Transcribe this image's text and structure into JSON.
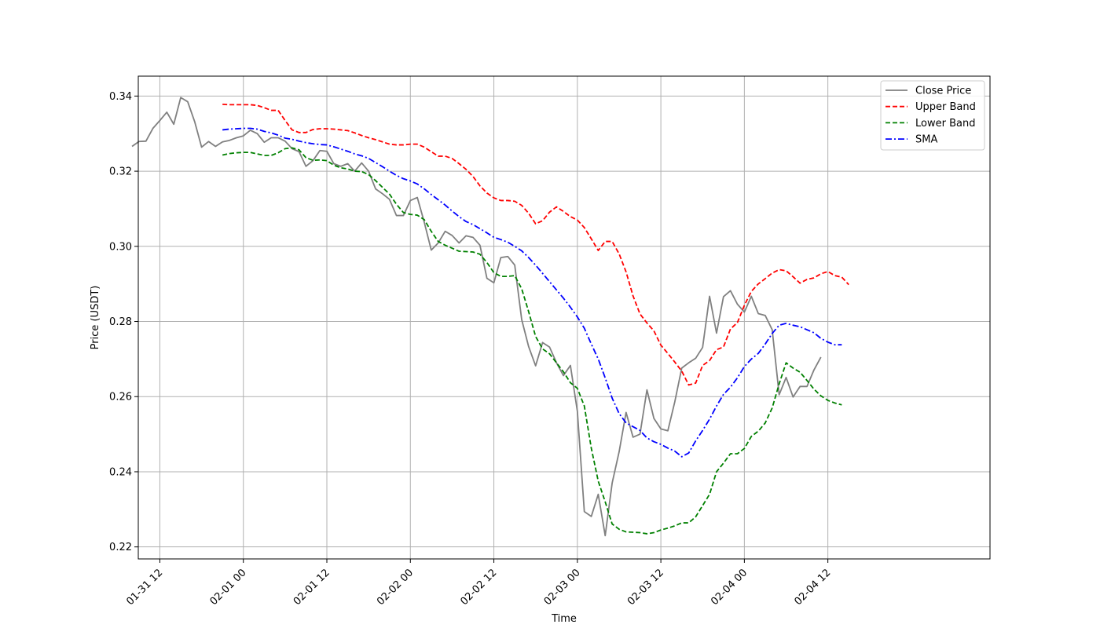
{
  "chart_data": {
    "type": "line",
    "title": "",
    "xlabel": "Time",
    "ylabel": "Price (USDT)",
    "x_unit": "hours since 01-31 00:00",
    "xlim": [
      8.9,
      131.3
    ],
    "ylim": [
      0.2168,
      0.3453
    ],
    "x_ticks": [
      {
        "label": "01-31 12",
        "value": 12
      },
      {
        "label": "02-01 00",
        "value": 24
      },
      {
        "label": "02-01 12",
        "value": 36
      },
      {
        "label": "02-02 00",
        "value": 48
      },
      {
        "label": "02-02 12",
        "value": 60
      },
      {
        "label": "02-03 00",
        "value": 72
      },
      {
        "label": "02-03 12",
        "value": 84
      },
      {
        "label": "02-04 00",
        "value": 96
      },
      {
        "label": "02-04 12",
        "value": 108
      }
    ],
    "y_ticks": [
      {
        "label": "0.22",
        "value": 0.22
      },
      {
        "label": "0.24",
        "value": 0.24
      },
      {
        "label": "0.26",
        "value": 0.26
      },
      {
        "label": "0.28",
        "value": 0.28
      },
      {
        "label": "0.30",
        "value": 0.3
      },
      {
        "label": "0.32",
        "value": 0.32
      },
      {
        "label": "0.34",
        "value": 0.34
      }
    ],
    "grid": true,
    "legend_position": "top-right",
    "series": [
      {
        "name": "Close Price",
        "color": "#808080",
        "dash": "solid",
        "x_start": 8,
        "x_step": 1,
        "values": [
          0.3266,
          0.3279,
          0.328,
          0.3314,
          0.3335,
          0.3357,
          0.3325,
          0.3396,
          0.3385,
          0.3332,
          0.3264,
          0.3279,
          0.3266,
          0.3278,
          0.3282,
          0.3289,
          0.3294,
          0.3309,
          0.33,
          0.3277,
          0.3289,
          0.3289,
          0.328,
          0.326,
          0.3252,
          0.3213,
          0.3228,
          0.3255,
          0.3253,
          0.322,
          0.3213,
          0.322,
          0.32,
          0.3222,
          0.32,
          0.3153,
          0.314,
          0.3125,
          0.3082,
          0.3082,
          0.3122,
          0.313,
          0.3064,
          0.299,
          0.3009,
          0.304,
          0.3029,
          0.3009,
          0.3028,
          0.3024,
          0.3003,
          0.2915,
          0.2903,
          0.297,
          0.2973,
          0.295,
          0.2805,
          0.2733,
          0.2682,
          0.2744,
          0.2732,
          0.269,
          0.2656,
          0.2683,
          0.2561,
          0.2294,
          0.2281,
          0.234,
          0.223,
          0.237,
          0.2453,
          0.2558,
          0.2492,
          0.25,
          0.2618,
          0.2542,
          0.2514,
          0.2509,
          0.2586,
          0.2676,
          0.269,
          0.2702,
          0.2731,
          0.2867,
          0.2769,
          0.2866,
          0.2882,
          0.2846,
          0.2825,
          0.2867,
          0.2821,
          0.2816,
          0.2778,
          0.2605,
          0.2651,
          0.2599,
          0.2627,
          0.2627,
          0.2671,
          0.2705
        ]
      },
      {
        "name": "Upper Band",
        "color": "#ff0000",
        "dash": "dashed",
        "x_start": 21,
        "x_step": 1,
        "values": [
          0.3378,
          0.3377,
          0.3377,
          0.3377,
          0.3377,
          0.3375,
          0.3369,
          0.3362,
          0.3362,
          0.3335,
          0.331,
          0.3303,
          0.3303,
          0.3311,
          0.3313,
          0.3313,
          0.3312,
          0.331,
          0.3308,
          0.3302,
          0.3295,
          0.3289,
          0.3284,
          0.3278,
          0.3272,
          0.327,
          0.327,
          0.3272,
          0.3272,
          0.3264,
          0.3252,
          0.324,
          0.324,
          0.3234,
          0.322,
          0.3205,
          0.3186,
          0.3161,
          0.3142,
          0.3129,
          0.3122,
          0.3122,
          0.312,
          0.3109,
          0.3088,
          0.306,
          0.3068,
          0.3091,
          0.3105,
          0.3093,
          0.3079,
          0.307,
          0.305,
          0.302,
          0.2989,
          0.3013,
          0.3013,
          0.298,
          0.2932,
          0.2868,
          0.282,
          0.2796,
          0.2775,
          0.2737,
          0.2715,
          0.2692,
          0.2668,
          0.2631,
          0.2636,
          0.2683,
          0.2696,
          0.2725,
          0.2732,
          0.278,
          0.2797,
          0.2843,
          0.288,
          0.29,
          0.2914,
          0.2929,
          0.2938,
          0.2935,
          0.2919,
          0.2902,
          0.2912,
          0.2916,
          0.2927,
          0.2933,
          0.2922,
          0.2918,
          0.2898
        ]
      },
      {
        "name": "Lower Band",
        "color": "#008000",
        "dash": "dashed",
        "x_start": 21,
        "x_step": 1,
        "values": [
          0.3243,
          0.3247,
          0.3249,
          0.325,
          0.325,
          0.3246,
          0.3242,
          0.3242,
          0.3249,
          0.326,
          0.3262,
          0.3257,
          0.3236,
          0.3229,
          0.323,
          0.3228,
          0.3216,
          0.3209,
          0.3206,
          0.32,
          0.3199,
          0.3191,
          0.3175,
          0.3157,
          0.3139,
          0.3112,
          0.309,
          0.3085,
          0.3083,
          0.3071,
          0.304,
          0.3013,
          0.3003,
          0.2995,
          0.2987,
          0.2986,
          0.2985,
          0.2979,
          0.2957,
          0.293,
          0.292,
          0.292,
          0.2922,
          0.2887,
          0.2826,
          0.276,
          0.2727,
          0.2714,
          0.269,
          0.2666,
          0.2637,
          0.2622,
          0.2575,
          0.2463,
          0.2375,
          0.232,
          0.2261,
          0.2247,
          0.224,
          0.2239,
          0.2238,
          0.2235,
          0.2238,
          0.2245,
          0.225,
          0.2256,
          0.2264,
          0.2264,
          0.228,
          0.231,
          0.234,
          0.24,
          0.2423,
          0.2448,
          0.2448,
          0.2462,
          0.2494,
          0.2508,
          0.253,
          0.257,
          0.2634,
          0.269,
          0.2676,
          0.2665,
          0.2643,
          0.262,
          0.2602,
          0.259,
          0.2583,
          0.2578
        ]
      },
      {
        "name": "SMA",
        "color": "#0000ff",
        "dash": "dashdot",
        "x_start": 21,
        "x_step": 1,
        "values": [
          0.331,
          0.3312,
          0.3313,
          0.3314,
          0.3314,
          0.3312,
          0.3306,
          0.3302,
          0.3296,
          0.3288,
          0.3285,
          0.328,
          0.3276,
          0.3273,
          0.3271,
          0.327,
          0.3265,
          0.3259,
          0.3253,
          0.3246,
          0.3241,
          0.3234,
          0.3223,
          0.3212,
          0.32,
          0.3189,
          0.318,
          0.3174,
          0.3166,
          0.3153,
          0.3138,
          0.3124,
          0.311,
          0.3094,
          0.3079,
          0.3066,
          0.3058,
          0.3047,
          0.3036,
          0.3024,
          0.3018,
          0.3011,
          0.3,
          0.2988,
          0.297,
          0.295,
          0.2928,
          0.2906,
          0.2884,
          0.2862,
          0.2838,
          0.2812,
          0.2782,
          0.274,
          0.27,
          0.265,
          0.2596,
          0.2555,
          0.253,
          0.252,
          0.251,
          0.249,
          0.248,
          0.2473,
          0.2463,
          0.2455,
          0.244,
          0.245,
          0.2482,
          0.251,
          0.254,
          0.2575,
          0.2606,
          0.2625,
          0.265,
          0.268,
          0.27,
          0.2715,
          0.274,
          0.2768,
          0.279,
          0.2795,
          0.279,
          0.2786,
          0.2778,
          0.277,
          0.2755,
          0.2745,
          0.2738,
          0.2738
        ]
      }
    ]
  }
}
